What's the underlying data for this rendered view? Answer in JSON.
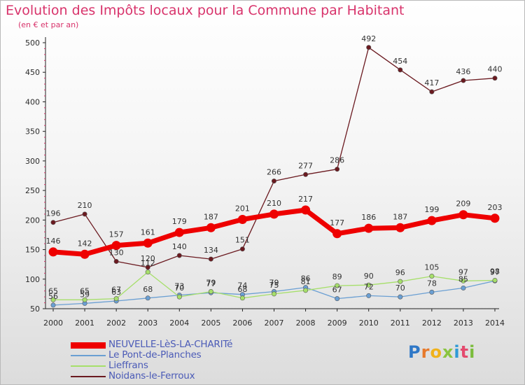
{
  "header": {
    "title": "Evolution des Impôts locaux pour la Commune par Habitant",
    "subtitle": "(en € et par an)"
  },
  "logo": {
    "letters": [
      "P",
      "r",
      "o",
      "x",
      "i",
      "t",
      "i"
    ],
    "colors": [
      "#2f78c7",
      "#e7792b",
      "#f0b21b",
      "#8ac43f",
      "#2f9ad6",
      "#e44a6e",
      "#7bbc3c"
    ]
  },
  "chart_data": {
    "type": "line",
    "x": [
      2000,
      2001,
      2002,
      2003,
      2004,
      2005,
      2006,
      2007,
      2008,
      2009,
      2010,
      2011,
      2012,
      2013,
      2014
    ],
    "ylim": [
      50,
      500
    ],
    "yticks": [
      50,
      100,
      150,
      200,
      250,
      300,
      350,
      400,
      450,
      500
    ],
    "grid": false,
    "legend_position": "bottom-left",
    "series": [
      {
        "name": "NEUVELLE-LèS-LA-CHARITé",
        "color": "#ee0000",
        "values": [
          146,
          142,
          157,
          161,
          179,
          187,
          201,
          210,
          217,
          177,
          186,
          187,
          199,
          209,
          203
        ]
      },
      {
        "name": "Le Pont-de-Planches",
        "color": "#6a9fd3",
        "values": [
          56,
          59,
          63,
          68,
          73,
          77,
          74,
          79,
          86,
          67,
          72,
          70,
          78,
          85,
          97
        ]
      },
      {
        "name": "Lieffrans",
        "color": "#a6df6a",
        "values": [
          65,
          65,
          67,
          112,
          70,
          79,
          68,
          75,
          81,
          89,
          90,
          96,
          105,
          97,
          98
        ]
      },
      {
        "name": "Noidans-le-Ferroux",
        "color": "#6b1a20",
        "values": [
          196,
          210,
          130,
          120,
          140,
          134,
          151,
          266,
          277,
          286,
          492,
          454,
          417,
          436,
          440
        ]
      }
    ]
  }
}
